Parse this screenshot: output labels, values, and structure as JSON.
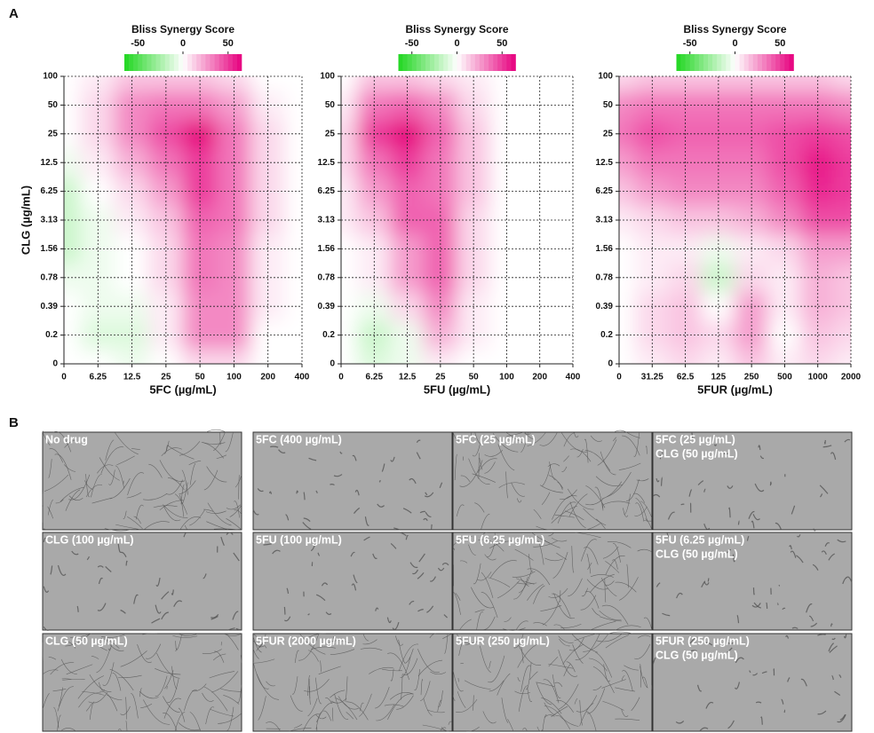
{
  "panel_labels": [
    "A",
    "B"
  ],
  "chart_data": [
    {
      "type": "heatmap",
      "colorbar_title": "Bliss Synergy Score",
      "colorbar_ticks": [
        -50,
        0,
        50
      ],
      "clim": [
        -65,
        65
      ],
      "low_color": "#1fd61f",
      "high_color": "#e6007e",
      "x_label": "5FC (µg/mL)",
      "y_label": "CLG (µg/mL)",
      "x_categories": [
        "0",
        "6.25",
        "12.5",
        "25",
        "50",
        "100",
        "200",
        "400"
      ],
      "y_categories": [
        "0",
        "0.2",
        "0.39",
        "0.78",
        "1.56",
        "3.13",
        "6.25",
        "12.5",
        "25",
        "50",
        "100"
      ],
      "values": [
        [
          0,
          0,
          -5,
          0,
          10,
          10,
          0,
          0
        ],
        [
          0,
          -10,
          -10,
          5,
          30,
          30,
          0,
          0
        ],
        [
          0,
          -5,
          -5,
          5,
          30,
          30,
          5,
          0
        ],
        [
          -5,
          -5,
          0,
          10,
          35,
          30,
          5,
          0
        ],
        [
          -15,
          -5,
          0,
          10,
          35,
          30,
          5,
          0
        ],
        [
          -15,
          -5,
          5,
          15,
          40,
          35,
          10,
          0
        ],
        [
          -15,
          0,
          10,
          25,
          50,
          35,
          10,
          0
        ],
        [
          -5,
          5,
          20,
          35,
          50,
          35,
          10,
          0
        ],
        [
          0,
          10,
          30,
          45,
          65,
          35,
          10,
          0
        ],
        [
          0,
          10,
          30,
          35,
          35,
          25,
          5,
          0
        ],
        [
          0,
          5,
          15,
          15,
          15,
          10,
          0,
          0
        ]
      ]
    },
    {
      "type": "heatmap",
      "colorbar_title": "Bliss Synergy Score",
      "colorbar_ticks": [
        -50,
        0,
        50
      ],
      "clim": [
        -65,
        65
      ],
      "low_color": "#1fd61f",
      "high_color": "#e6007e",
      "x_label": "5FU (µg/mL)",
      "x_categories": [
        "0",
        "6.25",
        "12.5",
        "25",
        "50",
        "100",
        "200",
        "400"
      ],
      "y_categories": [
        "0",
        "0.2",
        "0.39",
        "0.78",
        "1.56",
        "3.13",
        "6.25",
        "12.5",
        "25",
        "50",
        "100"
      ],
      "values": [
        [
          0,
          -10,
          -5,
          5,
          0,
          0,
          0,
          0
        ],
        [
          0,
          -15,
          -5,
          20,
          5,
          0,
          0,
          0
        ],
        [
          0,
          -5,
          10,
          30,
          5,
          0,
          0,
          0
        ],
        [
          0,
          5,
          25,
          40,
          10,
          0,
          0,
          0
        ],
        [
          0,
          5,
          25,
          40,
          10,
          0,
          0,
          0
        ],
        [
          5,
          15,
          40,
          40,
          10,
          0,
          0,
          0
        ],
        [
          5,
          25,
          40,
          35,
          15,
          0,
          0,
          0
        ],
        [
          10,
          35,
          50,
          35,
          15,
          0,
          0,
          0
        ],
        [
          10,
          50,
          65,
          40,
          15,
          0,
          0,
          0
        ],
        [
          5,
          35,
          40,
          30,
          10,
          0,
          0,
          0
        ],
        [
          0,
          15,
          15,
          10,
          5,
          0,
          0,
          0
        ]
      ]
    },
    {
      "type": "heatmap",
      "colorbar_title": "Bliss Synergy Score",
      "colorbar_ticks": [
        -50,
        0,
        50
      ],
      "clim": [
        -65,
        65
      ],
      "low_color": "#1fd61f",
      "high_color": "#e6007e",
      "x_label": "5FUR (µg/mL)",
      "x_categories": [
        "0",
        "31.25",
        "62.5",
        "125",
        "250",
        "500",
        "1000",
        "2000"
      ],
      "y_categories": [
        "0",
        "0.2",
        "0.39",
        "0.78",
        "1.56",
        "3.13",
        "6.25",
        "12.5",
        "25",
        "50",
        "100"
      ],
      "values": [
        [
          0,
          5,
          10,
          5,
          15,
          5,
          10,
          5
        ],
        [
          0,
          10,
          15,
          10,
          25,
          0,
          15,
          10
        ],
        [
          0,
          10,
          15,
          0,
          25,
          5,
          20,
          15
        ],
        [
          0,
          5,
          10,
          -15,
          10,
          5,
          20,
          15
        ],
        [
          0,
          5,
          5,
          -5,
          5,
          10,
          25,
          25
        ],
        [
          5,
          10,
          15,
          15,
          20,
          30,
          45,
          45
        ],
        [
          15,
          25,
          30,
          30,
          30,
          40,
          55,
          50
        ],
        [
          25,
          35,
          35,
          35,
          35,
          45,
          60,
          50
        ],
        [
          35,
          45,
          40,
          40,
          40,
          45,
          50,
          45
        ],
        [
          30,
          35,
          35,
          35,
          35,
          35,
          35,
          30
        ],
        [
          10,
          15,
          15,
          15,
          15,
          15,
          15,
          10
        ]
      ]
    }
  ],
  "images": [
    {
      "lines": [
        "No drug"
      ]
    },
    {
      "lines": [
        "5FC (400 µg/mL)"
      ]
    },
    {
      "lines": [
        "5FC (25 µg/mL)"
      ]
    },
    {
      "lines": [
        "5FC (25 µg/mL)",
        "CLG (50 µg/mL)"
      ]
    },
    {
      "lines": [
        "CLG (100 µg/mL)"
      ]
    },
    {
      "lines": [
        "5FU (100 µg/mL)"
      ]
    },
    {
      "lines": [
        "5FU (6.25 µg/mL)"
      ]
    },
    {
      "lines": [
        "5FU (6.25 µg/mL)",
        "CLG (50 µg/mL)"
      ]
    },
    {
      "lines": [
        "CLG (50 µg/mL)"
      ]
    },
    {
      "lines": [
        "5FUR (2000 µg/mL)"
      ]
    },
    {
      "lines": [
        "5FUR (250 µg/mL)"
      ]
    },
    {
      "lines": [
        "5FUR (250 µg/mL)",
        "CLG (50 µg/mL)"
      ]
    }
  ]
}
